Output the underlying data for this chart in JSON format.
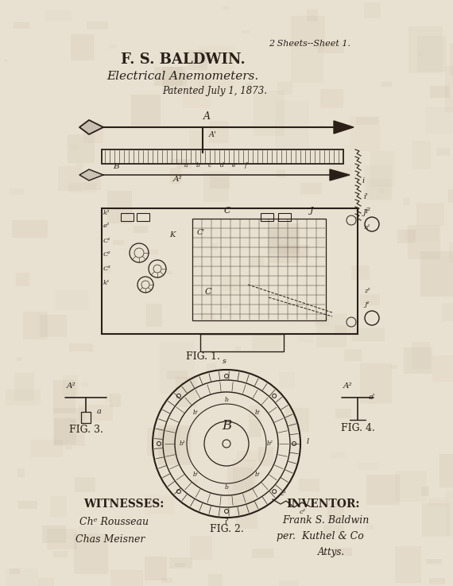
{
  "bg_color": "#e8e0d0",
  "line_color": "#2a2018",
  "title_line1": "F. S. BALDWIN.",
  "title_line2": "Electrical Anemometers.",
  "sheet_info": "2 Sheets--Sheet 1.",
  "patent_date": "Patented July 1, 1873.",
  "fig1_label": "FIG. 1.",
  "fig2_label": "FIG. 2.",
  "fig3_label": "FIG. 3.",
  "fig4_label": "FIG. 4.",
  "witnesses_label": "WITNESSES:",
  "inventor_label": "INVENTOR:",
  "witness1": "Chᵉ Rousseau",
  "witness2": "Chas Meisner",
  "inventor1": "Frank S. Baldwin",
  "inventor2": "per.  Kuthel & Co",
  "inventor3": "Attys."
}
